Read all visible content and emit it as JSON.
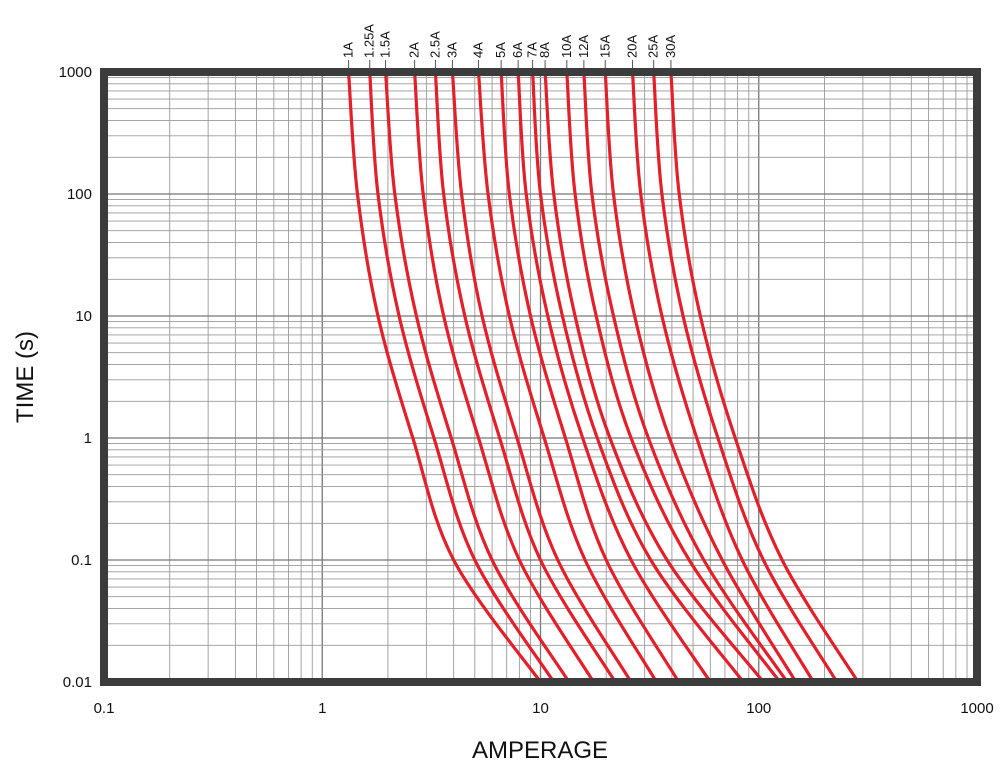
{
  "chart_data": {
    "type": "line",
    "title": "",
    "xlabel": "AMPERAGE",
    "ylabel": "TIME (s)",
    "xscale": "log",
    "yscale": "log",
    "xlim": [
      0.1,
      1000
    ],
    "ylim": [
      0.01,
      1000
    ],
    "grid": true,
    "legend": "labels at top of curves",
    "line_color": "#e3202a",
    "frame_color": "#3c3c3c",
    "x_ticks": [
      {
        "value": 0.1,
        "label": "0.1"
      },
      {
        "value": 1,
        "label": "1"
      },
      {
        "value": 10,
        "label": "10"
      },
      {
        "value": 100,
        "label": "100"
      },
      {
        "value": 1000,
        "label": "1000"
      }
    ],
    "y_ticks": [
      {
        "value": 0.01,
        "label": "0.01"
      },
      {
        "value": 0.1,
        "label": "0.1"
      },
      {
        "value": 1,
        "label": "1"
      },
      {
        "value": 10,
        "label": "10"
      },
      {
        "value": 100,
        "label": "100"
      },
      {
        "value": 1000,
        "label": "1000"
      }
    ],
    "series": [
      {
        "name": "1A",
        "points": [
          [
            1.32,
            1000
          ],
          [
            1.45,
            100
          ],
          [
            1.8,
            10
          ],
          [
            2.6,
            1
          ],
          [
            4.0,
            0.1
          ],
          [
            10.0,
            0.01
          ]
        ]
      },
      {
        "name": "1.25A",
        "points": [
          [
            1.65,
            1000
          ],
          [
            1.8,
            100
          ],
          [
            2.25,
            10
          ],
          [
            3.25,
            1
          ],
          [
            5.0,
            0.1
          ],
          [
            11.5,
            0.01
          ]
        ]
      },
      {
        "name": "1.5A",
        "points": [
          [
            1.95,
            1000
          ],
          [
            2.15,
            100
          ],
          [
            2.7,
            10
          ],
          [
            3.9,
            1
          ],
          [
            6.0,
            0.1
          ],
          [
            13.5,
            0.01
          ]
        ]
      },
      {
        "name": "2A",
        "points": [
          [
            2.65,
            1000
          ],
          [
            2.9,
            100
          ],
          [
            3.6,
            10
          ],
          [
            5.2,
            1
          ],
          [
            8.0,
            0.1
          ],
          [
            17.5,
            0.01
          ]
        ]
      },
      {
        "name": "2.5A",
        "points": [
          [
            3.3,
            1000
          ],
          [
            3.6,
            100
          ],
          [
            4.5,
            10
          ],
          [
            6.5,
            1
          ],
          [
            10.0,
            0.1
          ],
          [
            22.0,
            0.01
          ]
        ]
      },
      {
        "name": "3A",
        "points": [
          [
            3.95,
            1000
          ],
          [
            4.35,
            100
          ],
          [
            5.4,
            10
          ],
          [
            7.8,
            1
          ],
          [
            12.0,
            0.1
          ],
          [
            26.0,
            0.01
          ]
        ]
      },
      {
        "name": "4A",
        "points": [
          [
            5.2,
            1000
          ],
          [
            5.75,
            100
          ],
          [
            7.2,
            10
          ],
          [
            10.4,
            1
          ],
          [
            16.0,
            0.1
          ],
          [
            34.0,
            0.01
          ]
        ]
      },
      {
        "name": "5A",
        "points": [
          [
            6.6,
            1000
          ],
          [
            7.2,
            100
          ],
          [
            9.0,
            10
          ],
          [
            13.0,
            1
          ],
          [
            20.0,
            0.1
          ],
          [
            43.0,
            0.01
          ]
        ]
      },
      {
        "name": "6A",
        "points": [
          [
            7.9,
            1000
          ],
          [
            8.6,
            100
          ],
          [
            10.8,
            10
          ],
          [
            15.6,
            1
          ],
          [
            26.0,
            0.1
          ],
          [
            60.0,
            0.01
          ]
        ]
      },
      {
        "name": "7A",
        "points": [
          [
            9.2,
            1000
          ],
          [
            10.0,
            100
          ],
          [
            12.6,
            10
          ],
          [
            18.2,
            1
          ],
          [
            32.0,
            0.1
          ],
          [
            85.0,
            0.01
          ]
        ]
      },
      {
        "name": "8A",
        "points": [
          [
            10.5,
            1000
          ],
          [
            11.5,
            100
          ],
          [
            14.4,
            10
          ],
          [
            20.8,
            1
          ],
          [
            38.0,
            0.1
          ],
          [
            105.0,
            0.01
          ]
        ]
      },
      {
        "name": "10A",
        "points": [
          [
            13.2,
            1000
          ],
          [
            14.4,
            100
          ],
          [
            18.0,
            10
          ],
          [
            26.0,
            1
          ],
          [
            48.0,
            0.1
          ],
          [
            125.0,
            0.01
          ]
        ]
      },
      {
        "name": "12A",
        "points": [
          [
            15.8,
            1000
          ],
          [
            17.2,
            100
          ],
          [
            21.6,
            10
          ],
          [
            31.2,
            1
          ],
          [
            56.0,
            0.1
          ],
          [
            135.0,
            0.01
          ]
        ]
      },
      {
        "name": "15A",
        "points": [
          [
            19.8,
            1000
          ],
          [
            21.6,
            100
          ],
          [
            27.0,
            10
          ],
          [
            39.0,
            1
          ],
          [
            68.0,
            0.1
          ],
          [
            148.0,
            0.01
          ]
        ]
      },
      {
        "name": "20A",
        "points": [
          [
            26.4,
            1000
          ],
          [
            28.8,
            100
          ],
          [
            36.0,
            10
          ],
          [
            52.0,
            1
          ],
          [
            84.0,
            0.1
          ],
          [
            178.0,
            0.01
          ]
        ]
      },
      {
        "name": "25A",
        "points": [
          [
            33.0,
            1000
          ],
          [
            36.0,
            100
          ],
          [
            45.0,
            10
          ],
          [
            65.0,
            1
          ],
          [
            105.0,
            0.1
          ],
          [
            228.0,
            0.01
          ]
        ]
      },
      {
        "name": "30A",
        "points": [
          [
            39.6,
            1000
          ],
          [
            43.2,
            100
          ],
          [
            54.0,
            10
          ],
          [
            78.0,
            1
          ],
          [
            128.0,
            0.1
          ],
          [
            285.0,
            0.01
          ]
        ]
      }
    ]
  }
}
